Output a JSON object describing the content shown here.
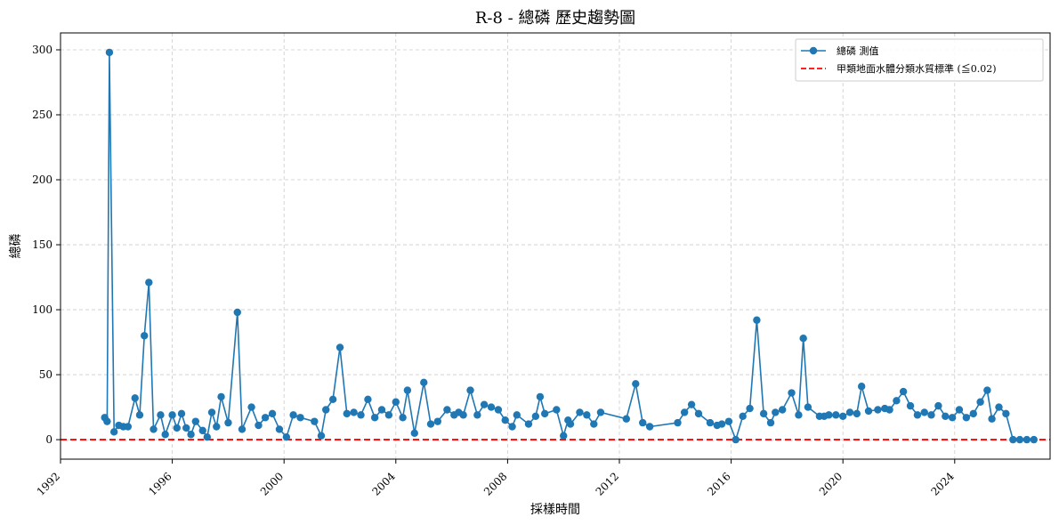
{
  "chart_data": {
    "type": "line",
    "title": "R-8 - 總磷 歷史趨勢圖",
    "xlabel": "採樣時間",
    "ylabel": "總磷",
    "x_ticks": [
      "1992",
      "1996",
      "2000",
      "2004",
      "2008",
      "2012",
      "2016",
      "2020",
      "2024"
    ],
    "y_ticks": [
      "0",
      "50",
      "100",
      "150",
      "200",
      "250",
      "300"
    ],
    "xlim": [
      "1992-01-01",
      "2027-06-01"
    ],
    "ylim": [
      -15,
      313
    ],
    "grid": true,
    "legend_position": "top-right",
    "series": [
      {
        "name": "總磷 測值",
        "color": "#1f77b4",
        "marker": "circle",
        "points": [
          [
            "1993-08-01",
            17
          ],
          [
            "1993-09-01",
            14
          ],
          [
            "1993-10-01",
            298
          ],
          [
            "1993-12-01",
            6
          ],
          [
            "1994-02-01",
            11
          ],
          [
            "1994-04-01",
            10
          ],
          [
            "1994-06-01",
            10
          ],
          [
            "1994-09-01",
            32
          ],
          [
            "1994-11-01",
            19
          ],
          [
            "1995-01-01",
            80
          ],
          [
            "1995-03-01",
            121
          ],
          [
            "1995-05-01",
            8
          ],
          [
            "1995-08-01",
            19
          ],
          [
            "1995-10-01",
            4
          ],
          [
            "1996-01-01",
            19
          ],
          [
            "1996-03-01",
            9
          ],
          [
            "1996-05-01",
            20
          ],
          [
            "1996-07-01",
            9
          ],
          [
            "1996-09-01",
            4
          ],
          [
            "1996-11-01",
            14
          ],
          [
            "1997-02-01",
            7
          ],
          [
            "1997-04-01",
            2
          ],
          [
            "1997-06-01",
            21
          ],
          [
            "1997-08-01",
            10
          ],
          [
            "1997-10-01",
            33
          ],
          [
            "1998-01-01",
            13
          ],
          [
            "1998-05-01",
            98
          ],
          [
            "1998-07-01",
            8
          ],
          [
            "1998-11-01",
            25
          ],
          [
            "1999-02-01",
            11
          ],
          [
            "1999-05-01",
            17
          ],
          [
            "1999-08-01",
            20
          ],
          [
            "1999-11-01",
            8
          ],
          [
            "2000-02-01",
            2
          ],
          [
            "2000-05-01",
            19
          ],
          [
            "2000-08-01",
            17
          ],
          [
            "2001-02-01",
            14
          ],
          [
            "2001-05-01",
            3
          ],
          [
            "2001-07-01",
            23
          ],
          [
            "2001-10-01",
            31
          ],
          [
            "2002-01-01",
            71
          ],
          [
            "2002-04-01",
            20
          ],
          [
            "2002-07-01",
            21
          ],
          [
            "2002-10-01",
            19
          ],
          [
            "2003-01-01",
            31
          ],
          [
            "2003-04-01",
            17
          ],
          [
            "2003-07-01",
            23
          ],
          [
            "2003-10-01",
            19
          ],
          [
            "2004-01-01",
            29
          ],
          [
            "2004-04-01",
            17
          ],
          [
            "2004-06-01",
            38
          ],
          [
            "2004-09-01",
            5
          ],
          [
            "2005-01-01",
            44
          ],
          [
            "2005-04-01",
            12
          ],
          [
            "2005-07-01",
            14
          ],
          [
            "2005-11-01",
            23
          ],
          [
            "2006-02-01",
            19
          ],
          [
            "2006-04-01",
            21
          ],
          [
            "2006-06-01",
            19
          ],
          [
            "2006-09-01",
            38
          ],
          [
            "2006-12-01",
            19
          ],
          [
            "2007-03-01",
            27
          ],
          [
            "2007-06-01",
            25
          ],
          [
            "2007-09-01",
            23
          ],
          [
            "2007-12-01",
            15
          ],
          [
            "2008-03-01",
            10
          ],
          [
            "2008-05-01",
            19
          ],
          [
            "2008-10-01",
            12
          ],
          [
            "2009-01-01",
            18
          ],
          [
            "2009-03-01",
            33
          ],
          [
            "2009-05-01",
            20
          ],
          [
            "2009-10-01",
            23
          ],
          [
            "2010-01-01",
            3
          ],
          [
            "2010-03-01",
            15
          ],
          [
            "2010-04-01",
            12
          ],
          [
            "2010-08-01",
            21
          ],
          [
            "2010-11-01",
            19
          ],
          [
            "2011-02-01",
            12
          ],
          [
            "2011-05-01",
            21
          ],
          [
            "2012-04-01",
            16
          ],
          [
            "2012-08-01",
            43
          ],
          [
            "2012-11-01",
            13
          ],
          [
            "2013-02-01",
            10
          ],
          [
            "2014-02-01",
            13
          ],
          [
            "2014-05-01",
            21
          ],
          [
            "2014-08-01",
            27
          ],
          [
            "2014-11-01",
            20
          ],
          [
            "2015-04-01",
            13
          ],
          [
            "2015-07-01",
            11
          ],
          [
            "2015-09-01",
            12
          ],
          [
            "2015-12-01",
            14
          ],
          [
            "2016-03-01",
            0
          ],
          [
            "2016-06-01",
            18
          ],
          [
            "2016-09-01",
            24
          ],
          [
            "2016-12-01",
            92
          ],
          [
            "2017-03-01",
            20
          ],
          [
            "2017-06-01",
            13
          ],
          [
            "2017-08-01",
            21
          ],
          [
            "2017-11-01",
            23
          ],
          [
            "2018-03-01",
            36
          ],
          [
            "2018-06-01",
            19
          ],
          [
            "2018-08-01",
            78
          ],
          [
            "2018-10-01",
            25
          ],
          [
            "2019-03-01",
            18
          ],
          [
            "2019-05-01",
            18
          ],
          [
            "2019-07-01",
            19
          ],
          [
            "2019-10-01",
            19
          ],
          [
            "2020-01-01",
            18
          ],
          [
            "2020-04-01",
            21
          ],
          [
            "2020-07-01",
            20
          ],
          [
            "2020-09-01",
            41
          ],
          [
            "2020-12-01",
            22
          ],
          [
            "2021-04-01",
            23
          ],
          [
            "2021-07-01",
            24
          ],
          [
            "2021-09-01",
            23
          ],
          [
            "2021-12-01",
            30
          ],
          [
            "2022-03-01",
            37
          ],
          [
            "2022-06-01",
            26
          ],
          [
            "2022-09-01",
            19
          ],
          [
            "2022-12-01",
            21
          ],
          [
            "2023-03-01",
            19
          ],
          [
            "2023-06-01",
            26
          ],
          [
            "2023-09-01",
            18
          ],
          [
            "2023-12-01",
            17
          ],
          [
            "2024-03-01",
            23
          ],
          [
            "2024-06-01",
            17
          ],
          [
            "2024-09-01",
            20
          ],
          [
            "2024-12-01",
            29
          ],
          [
            "2025-03-01",
            38
          ],
          [
            "2025-05-01",
            16
          ],
          [
            "2025-08-01",
            25
          ],
          [
            "2025-11-01",
            20
          ],
          [
            "2026-02-01",
            0
          ],
          [
            "2026-05-01",
            0
          ],
          [
            "2026-08-01",
            0
          ],
          [
            "2026-11-01",
            0
          ]
        ]
      },
      {
        "name": "甲類地面水體分類水質標準 (≦0.02)",
        "color": "#ff0000",
        "style": "dashed",
        "value": 0.02
      }
    ]
  }
}
